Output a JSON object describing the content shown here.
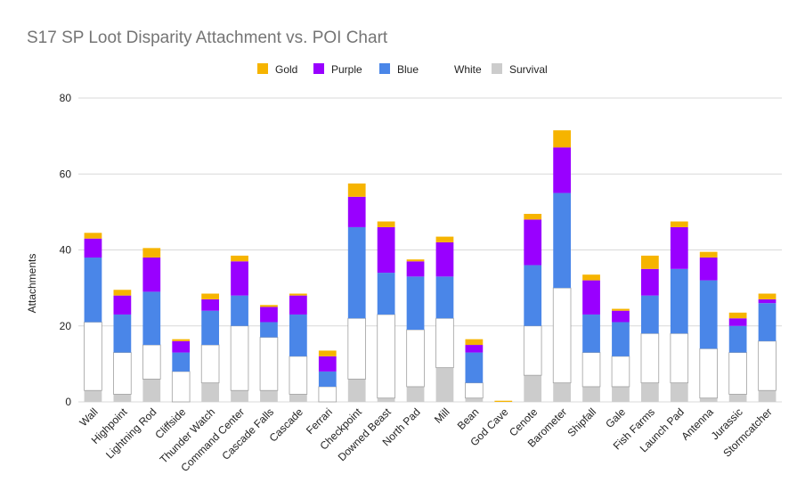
{
  "chart_data": {
    "type": "bar",
    "stacked": true,
    "title": "S17 SP Loot Disparity Attachment vs. POI Chart",
    "xlabel": "",
    "ylabel": "Attachments",
    "ylim": [
      0,
      80
    ],
    "yticks": [
      "0",
      "20",
      "40",
      "60",
      "80"
    ],
    "grid": true,
    "legend_position": "top",
    "categories": [
      "Wall",
      "Highpoint",
      "Lightning Rod",
      "Cliffside",
      "Thunder Watch",
      "Command Center",
      "Cascade Falls",
      "Cascade",
      "Ferrari",
      "Checkpoint",
      "Downed Beast",
      "North Pad",
      "Mill",
      "Bean",
      "God Cave",
      "Cenote",
      "Barometer",
      "Shipfall",
      "Gale",
      "Fish Farms",
      "Launch Pad",
      "Antenna",
      "Jurassic",
      "Stormcatcher"
    ],
    "series": [
      {
        "name": "Survival",
        "color": "#cccccc",
        "values": [
          3,
          2,
          6,
          0,
          5,
          3,
          3,
          2,
          0,
          6,
          1,
          4,
          9,
          1,
          0,
          7,
          5,
          4,
          4,
          5,
          5,
          1,
          2,
          3
        ]
      },
      {
        "name": "White",
        "color": "#ffffff",
        "values": [
          18,
          11,
          9,
          8,
          10,
          17,
          14,
          10,
          4,
          16,
          22,
          15,
          13,
          4,
          0,
          13,
          25,
          9,
          8,
          13,
          13,
          13,
          11,
          13
        ]
      },
      {
        "name": "Blue",
        "color": "#4a86e8",
        "values": [
          17,
          10,
          14,
          5,
          9,
          8,
          4,
          11,
          4,
          24,
          11,
          14,
          11,
          8,
          0,
          16,
          25,
          10,
          9,
          10,
          17,
          18,
          7,
          10
        ]
      },
      {
        "name": "Purple",
        "color": "#9900ff",
        "values": [
          5,
          5,
          9,
          3,
          3,
          9,
          4,
          5,
          4,
          8,
          12,
          4,
          9,
          2,
          0,
          12,
          12,
          9,
          3,
          7,
          11,
          6,
          2,
          1
        ]
      },
      {
        "name": "Gold",
        "color": "#f6b400",
        "values": [
          1.5,
          1.5,
          2.5,
          0.5,
          1.5,
          1.5,
          0.5,
          0.5,
          1.5,
          3.5,
          1.5,
          0.5,
          1.5,
          1.5,
          0.3,
          1.5,
          4.5,
          1.5,
          0.5,
          3.5,
          1.5,
          1.5,
          1.5,
          1.5
        ]
      }
    ],
    "legend_order": [
      "Gold",
      "Purple",
      "Blue",
      "White",
      "Survival"
    ]
  }
}
